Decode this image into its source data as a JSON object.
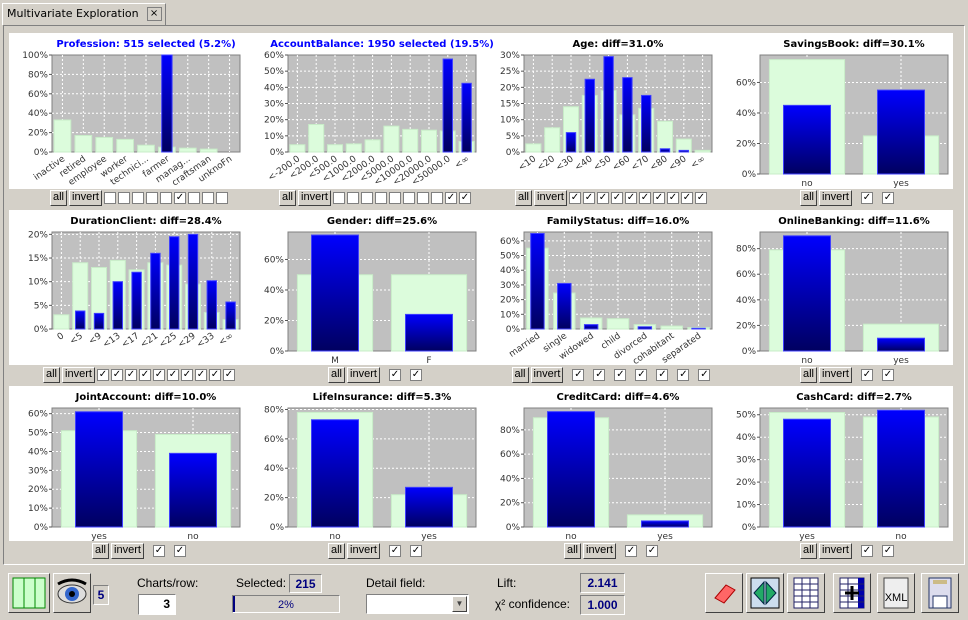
{
  "window": {
    "tab_title": "Multivariate Exploration",
    "close_icon": "×"
  },
  "colors": {
    "selected_title": "#0000ff",
    "title": "#000000",
    "base_bar": "#dcfcdc",
    "selected_bar_top": "#0000ff",
    "selected_bar_bottom": "#000060",
    "plot_bg": "#c0c0c0"
  },
  "controls": {
    "all_label": "all",
    "invert_label": "invert",
    "check_mark": "✓"
  },
  "chart_data": [
    {
      "type": "bar",
      "title": "Profession: 515 selected (5.2%)",
      "selected_title": true,
      "categories": [
        "inactive",
        "retired",
        "employee",
        "worker",
        "technici...",
        "farmer",
        "manag...",
        "craftsman",
        "unknoFn"
      ],
      "series": [
        {
          "values": [
            33,
            17,
            15,
            13,
            7,
            5,
            4,
            3,
            0
          ]
        },
        {
          "values": [
            0,
            0,
            0,
            0,
            0,
            100,
            0,
            0,
            0
          ]
        }
      ],
      "ylim": [
        0,
        100
      ],
      "yticks": [
        "0%",
        "20%",
        "40%",
        "60%",
        "80%",
        "100%"
      ],
      "checked": [
        false,
        false,
        false,
        false,
        false,
        true,
        false,
        false,
        false
      ]
    },
    {
      "type": "bar",
      "title": "AccountBalance: 1950 selected (19.5%)",
      "selected_title": true,
      "categories": [
        "<-200.0",
        "<200.0",
        "<500.0",
        "<1000.0",
        "<2000.0",
        "<5000.0",
        "<10000.0",
        "<20000.0",
        "<50000.0",
        "<∞"
      ],
      "series": [
        {
          "values": [
            4.5,
            17,
            4.5,
            5,
            7.5,
            16,
            14,
            13.5,
            13,
            6.5
          ]
        },
        {
          "values": [
            0,
            0,
            0,
            0,
            0,
            0,
            0,
            0,
            57.5,
            42.5
          ]
        }
      ],
      "ylim": [
        0,
        60
      ],
      "yticks": [
        "0%",
        "10%",
        "20%",
        "30%",
        "40%",
        "50%",
        "60%"
      ],
      "checked": [
        false,
        false,
        false,
        false,
        false,
        false,
        false,
        false,
        true,
        true
      ]
    },
    {
      "type": "bar",
      "title": "Age: diff=31.0%",
      "categories": [
        "<10",
        "<20",
        "<30",
        "<40",
        "<50",
        "<60",
        "<70",
        "<80",
        "<90",
        "<∞"
      ],
      "series": [
        {
          "values": [
            2.5,
            7.5,
            14,
            17.5,
            19,
            11.5,
            13.5,
            9.5,
            4,
            0.5
          ]
        },
        {
          "values": [
            0,
            0,
            6,
            22.5,
            29.5,
            23,
            17.5,
            1,
            0.5,
            0
          ]
        }
      ],
      "ylim": [
        0,
        30
      ],
      "yticks": [
        "0%",
        "5%",
        "10%",
        "15%",
        "20%",
        "25%",
        "30%"
      ],
      "checked": [
        true,
        true,
        true,
        true,
        true,
        true,
        true,
        true,
        true,
        true
      ]
    },
    {
      "type": "bar",
      "title": "SavingsBook: diff=30.1%",
      "categories": [
        "no",
        "yes"
      ],
      "series": [
        {
          "values": [
            75,
            25
          ]
        },
        {
          "values": [
            45,
            55
          ]
        }
      ],
      "ylim": [
        0,
        78
      ],
      "yticks": [
        "0%",
        "20%",
        "40%",
        "60%"
      ],
      "checked": [
        true,
        true
      ]
    },
    {
      "type": "bar",
      "title": "DurationClient: diff=28.4%",
      "categories": [
        "0",
        "<5",
        "<9",
        "<13",
        "<17",
        "<21",
        "<25",
        "<29",
        "<33",
        "<∞"
      ],
      "series": [
        {
          "values": [
            3,
            14,
            13,
            14.5,
            12.5,
            14,
            13.5,
            9.5,
            3.5,
            2
          ]
        },
        {
          "values": [
            0,
            3.8,
            3.3,
            10,
            12,
            16,
            19.5,
            20,
            10.2,
            5.7
          ]
        }
      ],
      "ylim": [
        0,
        20.5
      ],
      "yticks": [
        "0%",
        "5%",
        "10%",
        "15%",
        "20%"
      ],
      "checked": [
        true,
        true,
        true,
        true,
        true,
        true,
        true,
        true,
        true,
        true
      ]
    },
    {
      "type": "bar",
      "title": "Gender: diff=25.6%",
      "categories": [
        "M",
        "F"
      ],
      "series": [
        {
          "values": [
            50,
            50
          ]
        },
        {
          "values": [
            76,
            24
          ]
        }
      ],
      "ylim": [
        0,
        78
      ],
      "yticks": [
        "0%",
        "20%",
        "40%",
        "60%"
      ],
      "checked": [
        true,
        true
      ]
    },
    {
      "type": "bar",
      "title": "FamilyStatus: diff=16.0%",
      "categories": [
        "married",
        "single",
        "widowed",
        "child",
        "divorced",
        "cohabitant",
        "separated"
      ],
      "series": [
        {
          "values": [
            55,
            24.5,
            7.5,
            7,
            3,
            2,
            1
          ]
        },
        {
          "values": [
            65,
            31,
            3,
            0,
            1.5,
            0,
            0.5
          ]
        }
      ],
      "ylim": [
        0,
        66
      ],
      "yticks": [
        "0%",
        "10%",
        "20%",
        "30%",
        "40%",
        "50%",
        "60%"
      ],
      "checked": [
        true,
        true,
        true,
        true,
        true,
        true,
        true
      ]
    },
    {
      "type": "bar",
      "title": "OnlineBanking: diff=11.6%",
      "categories": [
        "no",
        "yes"
      ],
      "series": [
        {
          "values": [
            79,
            21
          ]
        },
        {
          "values": [
            90,
            10
          ]
        }
      ],
      "ylim": [
        0,
        93
      ],
      "yticks": [
        "0%",
        "20%",
        "40%",
        "60%",
        "80%"
      ],
      "checked": [
        true,
        true
      ]
    },
    {
      "type": "bar",
      "title": "JointAccount: diff=10.0%",
      "categories": [
        "yes",
        "no"
      ],
      "series": [
        {
          "values": [
            51,
            49
          ]
        },
        {
          "values": [
            61,
            39
          ]
        }
      ],
      "ylim": [
        0,
        63
      ],
      "yticks": [
        "0%",
        "10%",
        "20%",
        "30%",
        "40%",
        "50%",
        "60%"
      ],
      "checked": [
        true,
        true
      ]
    },
    {
      "type": "bar",
      "title": "LifeInsurance: diff=5.3%",
      "categories": [
        "no",
        "yes"
      ],
      "series": [
        {
          "values": [
            78,
            22
          ]
        },
        {
          "values": [
            73,
            27
          ]
        }
      ],
      "ylim": [
        0,
        81
      ],
      "yticks": [
        "0%",
        "20%",
        "40%",
        "60%",
        "80%"
      ],
      "checked": [
        true,
        true
      ]
    },
    {
      "type": "bar",
      "title": "CreditCard: diff=4.6%",
      "categories": [
        "no",
        "yes"
      ],
      "series": [
        {
          "values": [
            90,
            10
          ]
        },
        {
          "values": [
            95,
            5
          ]
        }
      ],
      "ylim": [
        0,
        98
      ],
      "yticks": [
        "0%",
        "20%",
        "40%",
        "60%",
        "80%"
      ],
      "checked": [
        true,
        true
      ]
    },
    {
      "type": "bar",
      "title": "CashCard: diff=2.7%",
      "categories": [
        "yes",
        "no"
      ],
      "series": [
        {
          "values": [
            51,
            49
          ]
        },
        {
          "values": [
            48,
            52
          ]
        }
      ],
      "ylim": [
        0,
        53
      ],
      "yticks": [
        "0%",
        "10%",
        "20%",
        "30%",
        "40%",
        "50%"
      ],
      "checked": [
        true,
        true
      ]
    }
  ],
  "toolbar": {
    "charts_count": "5",
    "charts_per_row_label": "Charts/row:",
    "charts_per_row_value": "3",
    "selected_label": "Selected:",
    "selected_value": "215",
    "progress_text": "2%",
    "progress": 0.02,
    "detail_field_label": "Detail field:",
    "detail_field_value": "",
    "lift_label": "Lift:",
    "lift_value": "2.141",
    "confidence_label": "χ² confidence:",
    "confidence_value": "1.000",
    "xml_label": "XML",
    "icons": [
      "layout-columns-icon",
      "eye-icon",
      "eraser-icon",
      "split-icon",
      "grid-icon",
      "grid-add-icon",
      "xml-export-icon",
      "save-icon"
    ]
  }
}
